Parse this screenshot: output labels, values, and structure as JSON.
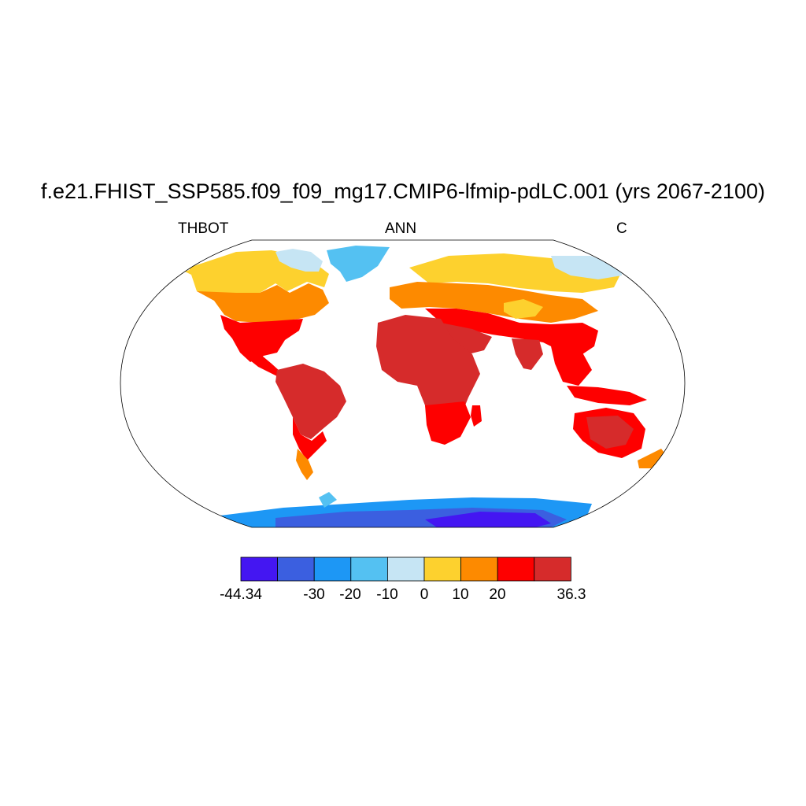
{
  "title": "f.e21.FHIST_SSP585.f09_f09_mg17.CMIP6-lfmip-pdLC.001 (yrs 2067-2100)",
  "left_label": "THBOT",
  "center_label": "ANN",
  "right_label": "C",
  "colorbar": {
    "colors": [
      "#4416f2",
      "#3b5fe0",
      "#1d97f5",
      "#54c1f2",
      "#c6e5f4",
      "#fdd12e",
      "#fd8a00",
      "#fe0000",
      "#d62b2b"
    ],
    "labels": [
      "-44.34",
      "-30",
      "-20",
      "-10",
      "0",
      "10",
      "20",
      "36.3"
    ]
  }
}
